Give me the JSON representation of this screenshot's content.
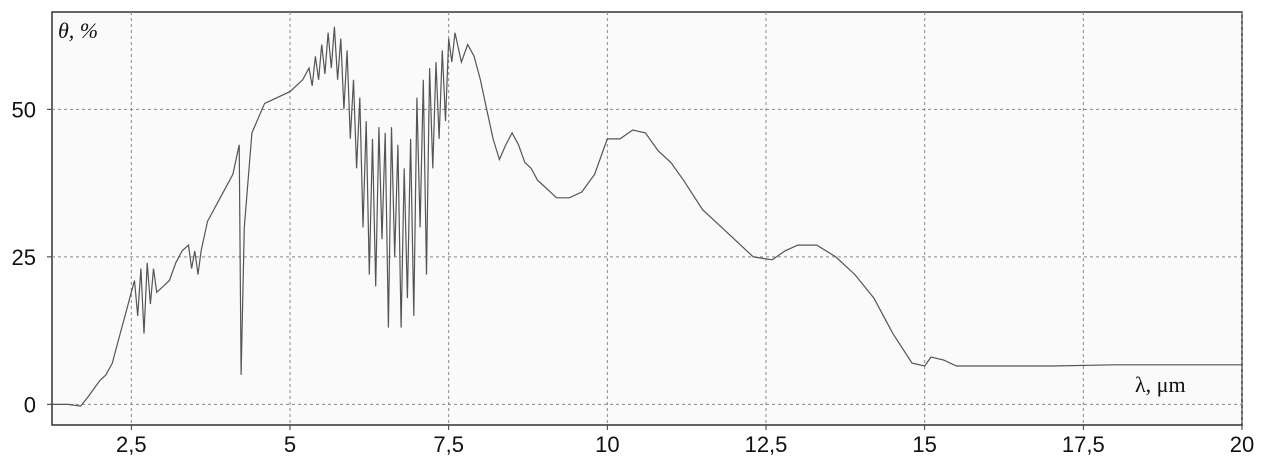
{
  "chart_data": {
    "type": "line",
    "y_label": "θ, %",
    "x_label": "λ, μm",
    "x": [
      1.25,
      1.5,
      1.7,
      1.8,
      1.9,
      2.0,
      2.1,
      2.2,
      2.3,
      2.4,
      2.5,
      2.55,
      2.6,
      2.65,
      2.7,
      2.75,
      2.8,
      2.85,
      2.9,
      3.0,
      3.1,
      3.2,
      3.3,
      3.4,
      3.45,
      3.5,
      3.55,
      3.6,
      3.7,
      3.9,
      4.1,
      4.2,
      4.23,
      4.28,
      4.4,
      4.6,
      4.8,
      5.0,
      5.2,
      5.3,
      5.35,
      5.4,
      5.45,
      5.5,
      5.55,
      5.6,
      5.65,
      5.7,
      5.75,
      5.8,
      5.85,
      5.9,
      5.95,
      6.0,
      6.05,
      6.1,
      6.15,
      6.2,
      6.25,
      6.3,
      6.35,
      6.4,
      6.45,
      6.5,
      6.55,
      6.6,
      6.65,
      6.7,
      6.75,
      6.8,
      6.85,
      6.9,
      6.95,
      7.0,
      7.05,
      7.1,
      7.15,
      7.2,
      7.25,
      7.3,
      7.35,
      7.4,
      7.45,
      7.5,
      7.55,
      7.6,
      7.7,
      7.8,
      7.9,
      8.0,
      8.1,
      8.2,
      8.3,
      8.4,
      8.5,
      8.6,
      8.7,
      8.8,
      8.9,
      9.0,
      9.2,
      9.4,
      9.6,
      9.8,
      10.0,
      10.2,
      10.4,
      10.6,
      10.8,
      11.0,
      11.2,
      11.5,
      11.8,
      12.0,
      12.3,
      12.6,
      12.8,
      13.0,
      13.3,
      13.6,
      13.9,
      14.2,
      14.5,
      14.8,
      15.0,
      15.1,
      15.3,
      15.5,
      16,
      17,
      18,
      19,
      20
    ],
    "values": [
      0,
      0,
      -0.3,
      1,
      2.5,
      4,
      5,
      7,
      11,
      15,
      19,
      21,
      15,
      23,
      12,
      24,
      17,
      23,
      19,
      20,
      21,
      24,
      26,
      27,
      23,
      26,
      22,
      26,
      31,
      35,
      39,
      44,
      5,
      30,
      46,
      51,
      52,
      53,
      55,
      57,
      54,
      59,
      55,
      61,
      56,
      63,
      57,
      64,
      55,
      62,
      50,
      60,
      45,
      55,
      40,
      52,
      30,
      48,
      22,
      45,
      20,
      47,
      28,
      46,
      13,
      47,
      25,
      44,
      13,
      40,
      18,
      45,
      15,
      52,
      30,
      55,
      22,
      57,
      40,
      58,
      45,
      60,
      48,
      62,
      58,
      63,
      58,
      61,
      59,
      55,
      50,
      45,
      41.5,
      44,
      46,
      44,
      41,
      40,
      38,
      37,
      35,
      35,
      36,
      39,
      45,
      45,
      46.5,
      46,
      43,
      41,
      38,
      33,
      30,
      28,
      25,
      24.5,
      26,
      27,
      27,
      25,
      22,
      18,
      12,
      7,
      6.5,
      8,
      7.5,
      6.5,
      6.5,
      6.5,
      6.7,
      6.7,
      6.7
    ],
    "color": "#555555",
    "xlim": [
      1.25,
      20
    ],
    "ylim": [
      -3.5,
      66.5
    ],
    "xticks": [
      {
        "value": 2.5,
        "label": "2,5"
      },
      5,
      {
        "value": 7.5,
        "label": "7,5"
      },
      10,
      {
        "value": 12.5,
        "label": "12,5"
      },
      15,
      {
        "value": 17.5,
        "label": "17,5"
      },
      20
    ],
    "yticks": [
      0,
      25,
      50
    ],
    "grid": true
  }
}
